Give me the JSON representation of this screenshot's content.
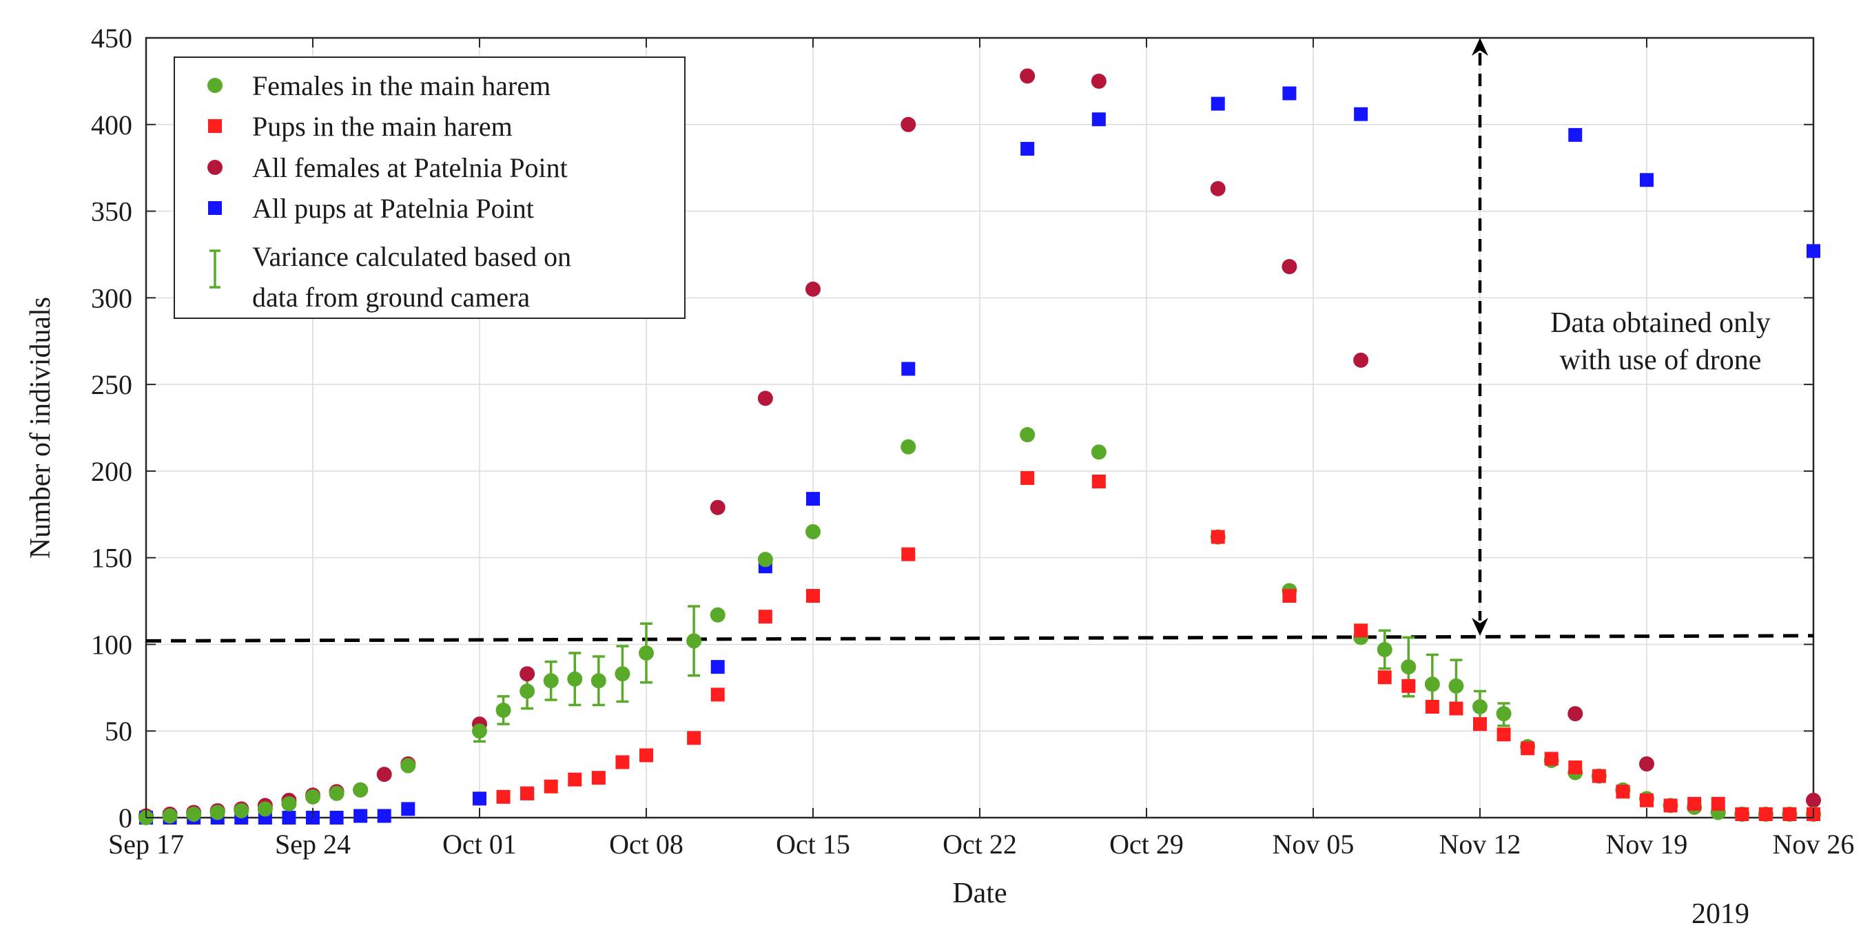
{
  "chart_data": {
    "type": "scatter",
    "xlabel": "Date",
    "ylabel": "Number of individuals",
    "year_label": "2019",
    "x_tick_labels": [
      "Sep 17",
      "Sep 24",
      "Oct 01",
      "Oct 08",
      "Oct 15",
      "Oct 22",
      "Oct 29",
      "Nov 05",
      "Nov 12",
      "Nov 19",
      "Nov 26"
    ],
    "x_ticks": [
      "2019-09-17",
      "2019-09-24",
      "2019-10-01",
      "2019-10-08",
      "2019-10-15",
      "2019-10-22",
      "2019-10-29",
      "2019-11-05",
      "2019-11-12",
      "2019-11-19",
      "2019-11-26"
    ],
    "xlim": [
      "2019-09-17",
      "2019-11-26"
    ],
    "y_ticks": [
      0,
      50,
      100,
      150,
      200,
      250,
      300,
      350,
      400,
      450
    ],
    "ylim": [
      0,
      450
    ],
    "grid": true,
    "legend_position": "top-left",
    "series": [
      {
        "name": "Females in the main harem",
        "marker": "circle",
        "color": "#5aaa2a",
        "points": [
          {
            "x": "2019-09-17",
            "y": 0
          },
          {
            "x": "2019-09-18",
            "y": 1
          },
          {
            "x": "2019-09-19",
            "y": 2
          },
          {
            "x": "2019-09-20",
            "y": 3
          },
          {
            "x": "2019-09-21",
            "y": 4
          },
          {
            "x": "2019-09-22",
            "y": 5
          },
          {
            "x": "2019-09-23",
            "y": 8
          },
          {
            "x": "2019-09-24",
            "y": 12
          },
          {
            "x": "2019-09-25",
            "y": 14
          },
          {
            "x": "2019-09-26",
            "y": 16
          },
          {
            "x": "2019-09-28",
            "y": 30
          },
          {
            "x": "2019-10-01",
            "y": 50
          },
          {
            "x": "2019-10-02",
            "y": 62
          },
          {
            "x": "2019-10-03",
            "y": 73
          },
          {
            "x": "2019-10-04",
            "y": 79
          },
          {
            "x": "2019-10-05",
            "y": 80
          },
          {
            "x": "2019-10-06",
            "y": 79
          },
          {
            "x": "2019-10-07",
            "y": 83
          },
          {
            "x": "2019-10-08",
            "y": 95
          },
          {
            "x": "2019-10-10",
            "y": 102
          },
          {
            "x": "2019-10-11",
            "y": 117
          },
          {
            "x": "2019-10-13",
            "y": 149
          },
          {
            "x": "2019-10-15",
            "y": 165
          },
          {
            "x": "2019-10-19",
            "y": 214
          },
          {
            "x": "2019-10-24",
            "y": 221
          },
          {
            "x": "2019-10-27",
            "y": 211
          },
          {
            "x": "2019-11-01",
            "y": 162
          },
          {
            "x": "2019-11-04",
            "y": 131
          },
          {
            "x": "2019-11-07",
            "y": 104
          },
          {
            "x": "2019-11-08",
            "y": 97
          },
          {
            "x": "2019-11-09",
            "y": 87
          },
          {
            "x": "2019-11-10",
            "y": 77
          },
          {
            "x": "2019-11-11",
            "y": 76
          },
          {
            "x": "2019-11-12",
            "y": 64
          },
          {
            "x": "2019-11-13",
            "y": 60
          },
          {
            "x": "2019-11-14",
            "y": 41
          },
          {
            "x": "2019-11-15",
            "y": 33
          },
          {
            "x": "2019-11-16",
            "y": 26
          },
          {
            "x": "2019-11-17",
            "y": 24
          },
          {
            "x": "2019-11-18",
            "y": 16
          },
          {
            "x": "2019-11-19",
            "y": 11
          },
          {
            "x": "2019-11-20",
            "y": 7
          },
          {
            "x": "2019-11-21",
            "y": 6
          },
          {
            "x": "2019-11-22",
            "y": 3
          },
          {
            "x": "2019-11-23",
            "y": 2
          },
          {
            "x": "2019-11-24",
            "y": 2
          },
          {
            "x": "2019-11-25",
            "y": 2
          },
          {
            "x": "2019-11-26",
            "y": 2
          }
        ]
      },
      {
        "name": "Pups in the main harem",
        "marker": "square",
        "color": "#ff1e1e",
        "points": [
          {
            "x": "2019-10-02",
            "y": 12
          },
          {
            "x": "2019-10-03",
            "y": 14
          },
          {
            "x": "2019-10-04",
            "y": 18
          },
          {
            "x": "2019-10-05",
            "y": 22
          },
          {
            "x": "2019-10-06",
            "y": 23
          },
          {
            "x": "2019-10-07",
            "y": 32
          },
          {
            "x": "2019-10-08",
            "y": 36
          },
          {
            "x": "2019-10-10",
            "y": 46
          },
          {
            "x": "2019-10-11",
            "y": 71
          },
          {
            "x": "2019-10-13",
            "y": 116
          },
          {
            "x": "2019-10-15",
            "y": 128
          },
          {
            "x": "2019-10-19",
            "y": 152
          },
          {
            "x": "2019-10-24",
            "y": 196
          },
          {
            "x": "2019-10-27",
            "y": 194
          },
          {
            "x": "2019-11-01",
            "y": 162
          },
          {
            "x": "2019-11-04",
            "y": 128
          },
          {
            "x": "2019-11-07",
            "y": 108
          },
          {
            "x": "2019-11-08",
            "y": 81
          },
          {
            "x": "2019-11-09",
            "y": 76
          },
          {
            "x": "2019-11-10",
            "y": 64
          },
          {
            "x": "2019-11-11",
            "y": 63
          },
          {
            "x": "2019-11-12",
            "y": 54
          },
          {
            "x": "2019-11-13",
            "y": 48
          },
          {
            "x": "2019-11-14",
            "y": 40
          },
          {
            "x": "2019-11-15",
            "y": 34
          },
          {
            "x": "2019-11-16",
            "y": 29
          },
          {
            "x": "2019-11-17",
            "y": 24
          },
          {
            "x": "2019-11-18",
            "y": 15
          },
          {
            "x": "2019-11-19",
            "y": 10
          },
          {
            "x": "2019-11-20",
            "y": 7
          },
          {
            "x": "2019-11-21",
            "y": 8
          },
          {
            "x": "2019-11-22",
            "y": 8
          },
          {
            "x": "2019-11-23",
            "y": 2
          },
          {
            "x": "2019-11-24",
            "y": 2
          },
          {
            "x": "2019-11-25",
            "y": 2
          },
          {
            "x": "2019-11-26",
            "y": 2
          }
        ]
      },
      {
        "name": "All females at Patelnia Point",
        "marker": "circle",
        "color": "#b5173a",
        "points": [
          {
            "x": "2019-09-17",
            "y": 1
          },
          {
            "x": "2019-09-18",
            "y": 2
          },
          {
            "x": "2019-09-19",
            "y": 3
          },
          {
            "x": "2019-09-20",
            "y": 4
          },
          {
            "x": "2019-09-21",
            "y": 5
          },
          {
            "x": "2019-09-22",
            "y": 7
          },
          {
            "x": "2019-09-23",
            "y": 10
          },
          {
            "x": "2019-09-24",
            "y": 13
          },
          {
            "x": "2019-09-25",
            "y": 15
          },
          {
            "x": "2019-09-26",
            "y": 16
          },
          {
            "x": "2019-09-27",
            "y": 25
          },
          {
            "x": "2019-09-28",
            "y": 31
          },
          {
            "x": "2019-10-01",
            "y": 54
          },
          {
            "x": "2019-10-03",
            "y": 83
          },
          {
            "x": "2019-10-11",
            "y": 179
          },
          {
            "x": "2019-10-13",
            "y": 242
          },
          {
            "x": "2019-10-15",
            "y": 305
          },
          {
            "x": "2019-10-19",
            "y": 400
          },
          {
            "x": "2019-10-24",
            "y": 428
          },
          {
            "x": "2019-10-27",
            "y": 425
          },
          {
            "x": "2019-11-01",
            "y": 363
          },
          {
            "x": "2019-11-04",
            "y": 318
          },
          {
            "x": "2019-11-07",
            "y": 264
          },
          {
            "x": "2019-11-16",
            "y": 60
          },
          {
            "x": "2019-11-19",
            "y": 31
          },
          {
            "x": "2019-11-26",
            "y": 10
          }
        ]
      },
      {
        "name": "All pups at Patelnia Point",
        "marker": "square",
        "color": "#1414ff",
        "points": [
          {
            "x": "2019-09-17",
            "y": 0
          },
          {
            "x": "2019-09-18",
            "y": 0
          },
          {
            "x": "2019-09-19",
            "y": 0
          },
          {
            "x": "2019-09-20",
            "y": 0
          },
          {
            "x": "2019-09-21",
            "y": 0
          },
          {
            "x": "2019-09-22",
            "y": 0
          },
          {
            "x": "2019-09-23",
            "y": 0
          },
          {
            "x": "2019-09-24",
            "y": 0
          },
          {
            "x": "2019-09-25",
            "y": 0
          },
          {
            "x": "2019-09-26",
            "y": 1
          },
          {
            "x": "2019-09-27",
            "y": 1
          },
          {
            "x": "2019-09-28",
            "y": 5
          },
          {
            "x": "2019-10-01",
            "y": 11
          },
          {
            "x": "2019-10-03",
            "y": 14
          },
          {
            "x": "2019-10-11",
            "y": 87
          },
          {
            "x": "2019-10-13",
            "y": 145
          },
          {
            "x": "2019-10-15",
            "y": 184
          },
          {
            "x": "2019-10-19",
            "y": 259
          },
          {
            "x": "2019-10-24",
            "y": 386
          },
          {
            "x": "2019-10-27",
            "y": 403
          },
          {
            "x": "2019-11-01",
            "y": 412
          },
          {
            "x": "2019-11-04",
            "y": 418
          },
          {
            "x": "2019-11-07",
            "y": 406
          },
          {
            "x": "2019-11-16",
            "y": 394
          },
          {
            "x": "2019-11-19",
            "y": 368
          },
          {
            "x": "2019-11-26",
            "y": 327
          }
        ]
      }
    ],
    "error_bars": {
      "name": "Variance calculated based on data from ground camera",
      "legend_lines": [
        "Variance calculated based on",
        "data from ground camera"
      ],
      "color": "#5aaa2a",
      "bars": [
        {
          "x": "2019-10-01",
          "low": 44,
          "high": 55
        },
        {
          "x": "2019-10-02",
          "low": 54,
          "high": 70
        },
        {
          "x": "2019-10-03",
          "low": 63,
          "high": 83
        },
        {
          "x": "2019-10-04",
          "low": 68,
          "high": 90
        },
        {
          "x": "2019-10-05",
          "low": 65,
          "high": 95
        },
        {
          "x": "2019-10-06",
          "low": 65,
          "high": 93
        },
        {
          "x": "2019-10-07",
          "low": 67,
          "high": 99
        },
        {
          "x": "2019-10-08",
          "low": 78,
          "high": 112
        },
        {
          "x": "2019-10-10",
          "low": 82,
          "high": 122
        },
        {
          "x": "2019-11-08",
          "low": 86,
          "high": 108
        },
        {
          "x": "2019-11-09",
          "low": 70,
          "high": 104
        },
        {
          "x": "2019-11-10",
          "low": 62,
          "high": 94
        },
        {
          "x": "2019-11-11",
          "low": 62,
          "high": 91
        },
        {
          "x": "2019-11-12",
          "low": 55,
          "high": 73
        },
        {
          "x": "2019-11-13",
          "low": 53,
          "high": 66
        }
      ]
    },
    "reference_line": {
      "style": "dashed",
      "x_start": "2019-09-17",
      "y_start": 102,
      "x_end": "2019-11-26",
      "y_end": 105
    },
    "annotation": {
      "lines": [
        "Data obtained only",
        "with use of drone"
      ],
      "arrow": {
        "style": "dashed double-headed",
        "x": "2019-11-12",
        "y_from": 105,
        "y_to": 450
      }
    }
  }
}
